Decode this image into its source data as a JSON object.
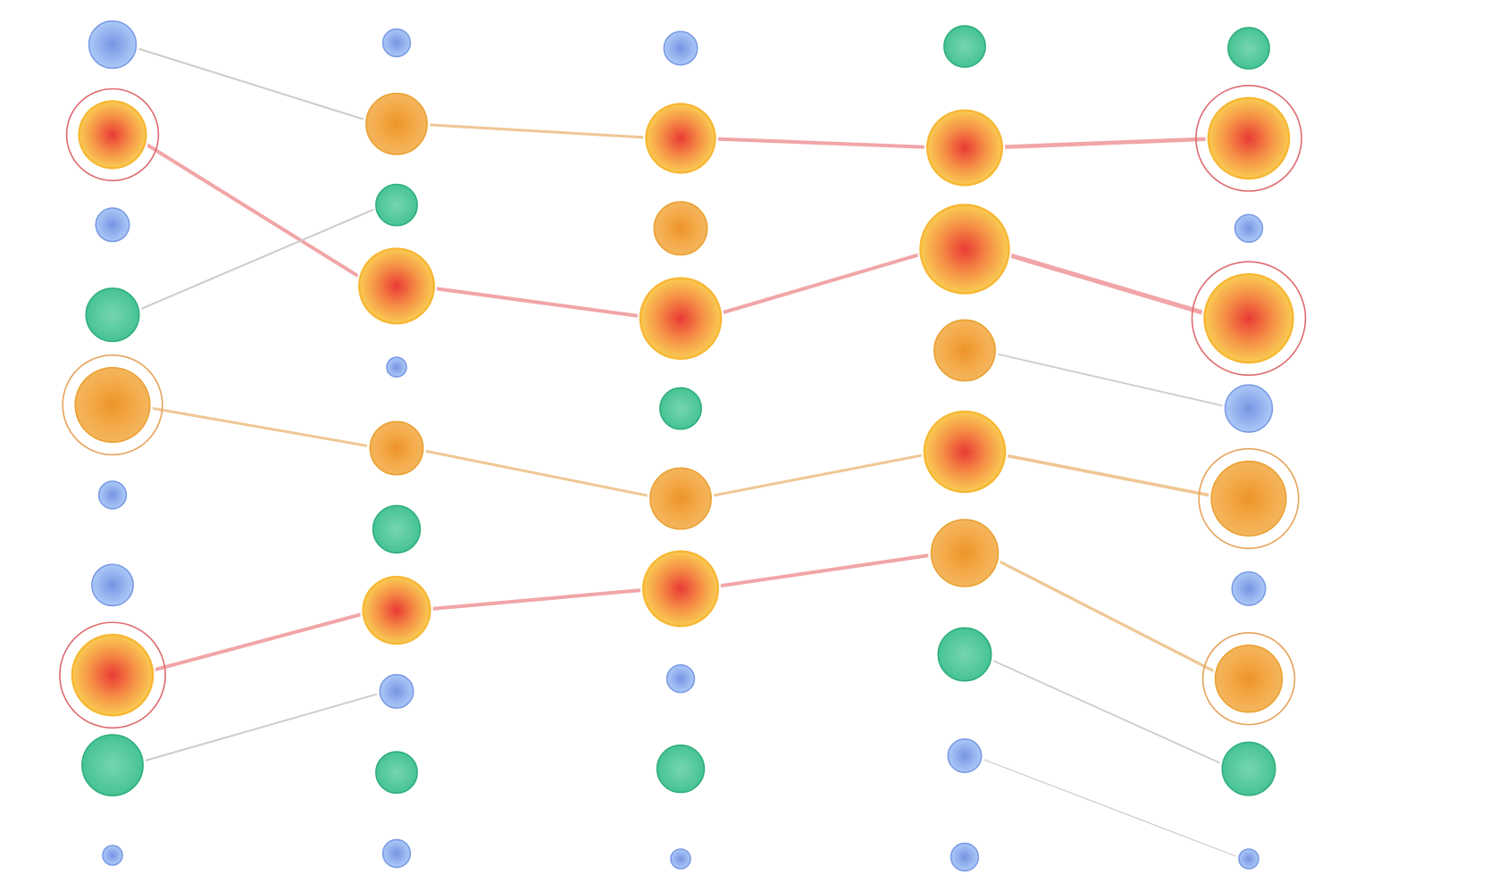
{
  "colors": {
    "background": "#ffffff",
    "hot": {
      "center": "#e8302a",
      "mid": "#f58a3c",
      "edge": "#f9c84a",
      "stroke": "#f7b733"
    },
    "warm": {
      "center": "#ec8e1d",
      "mid": "#f3a640",
      "edge": "#f3b154",
      "stroke": "#eaa131"
    },
    "green": {
      "center": "#6fd3ac",
      "edge": "#3cc08e",
      "stroke": "#2fae7e"
    },
    "blue": {
      "center": "#6f8fe0",
      "edge": "#a8c6f8",
      "stroke": "#7a9be4"
    },
    "link_hot": "#f0a0a2",
    "link_warm": "#eec48f",
    "link_gray": "#c6c6c8",
    "ring_hot": "#df6b70",
    "ring_warm": "#e6a35a",
    "halo": "#ffffff"
  },
  "columns": [
    {
      "id": "layer-1",
      "nodes": [
        {
          "id": "l1-n1",
          "kind": "blue",
          "size": 1.2
        },
        {
          "id": "l1-n2",
          "kind": "hot",
          "size": 1.7,
          "ring": "hot"
        },
        {
          "id": "l1-n3",
          "kind": "blue",
          "size": 0.85
        },
        {
          "id": "l1-n4",
          "kind": "green",
          "size": 1.35
        },
        {
          "id": "l1-n5",
          "kind": "warm",
          "size": 1.9,
          "ring": "warm"
        },
        {
          "id": "l1-n6",
          "kind": "blue",
          "size": 0.7
        },
        {
          "id": "l1-n7",
          "kind": "blue",
          "size": 1.05
        },
        {
          "id": "l1-n8",
          "kind": "hot",
          "size": 2.05,
          "ring": "hot"
        },
        {
          "id": "l1-n9",
          "kind": "green",
          "size": 1.55
        },
        {
          "id": "l1-n10",
          "kind": "blue",
          "size": 0.5
        }
      ]
    },
    {
      "id": "layer-2",
      "nodes": [
        {
          "id": "l2-n1",
          "kind": "blue",
          "size": 0.7
        },
        {
          "id": "l2-n2",
          "kind": "warm",
          "size": 1.55
        },
        {
          "id": "l2-n3",
          "kind": "green",
          "size": 1.05
        },
        {
          "id": "l2-n4",
          "kind": "hot",
          "size": 1.9
        },
        {
          "id": "l2-n5",
          "kind": "blue",
          "size": 0.5
        },
        {
          "id": "l2-n6",
          "kind": "warm",
          "size": 1.35
        },
        {
          "id": "l2-n7",
          "kind": "green",
          "size": 1.2
        },
        {
          "id": "l2-n8",
          "kind": "hot",
          "size": 1.7
        },
        {
          "id": "l2-n9",
          "kind": "blue",
          "size": 0.85
        },
        {
          "id": "l2-n10",
          "kind": "green",
          "size": 1.05
        },
        {
          "id": "l2-n11",
          "kind": "blue",
          "size": 0.7
        }
      ]
    },
    {
      "id": "layer-3",
      "nodes": [
        {
          "id": "l3-n1",
          "kind": "blue",
          "size": 0.85
        },
        {
          "id": "l3-n2",
          "kind": "hot",
          "size": 1.75
        },
        {
          "id": "l3-n3",
          "kind": "warm",
          "size": 1.35
        },
        {
          "id": "l3-n4",
          "kind": "hot",
          "size": 2.05
        },
        {
          "id": "l3-n5",
          "kind": "green",
          "size": 1.05
        },
        {
          "id": "l3-n6",
          "kind": "warm",
          "size": 1.55
        },
        {
          "id": "l3-n7",
          "kind": "hot",
          "size": 1.9
        },
        {
          "id": "l3-n8",
          "kind": "blue",
          "size": 0.7
        },
        {
          "id": "l3-n9",
          "kind": "green",
          "size": 1.2
        },
        {
          "id": "l3-n10",
          "kind": "blue",
          "size": 0.5
        }
      ]
    },
    {
      "id": "layer-4",
      "nodes": [
        {
          "id": "l4-n1",
          "kind": "green",
          "size": 1.05
        },
        {
          "id": "l4-n2",
          "kind": "hot",
          "size": 1.9
        },
        {
          "id": "l4-n3",
          "kind": "hot",
          "size": 2.25
        },
        {
          "id": "l4-n4",
          "kind": "warm",
          "size": 1.55
        },
        {
          "id": "l4-n5",
          "kind": "hot",
          "size": 2.05
        },
        {
          "id": "l4-n6",
          "kind": "warm",
          "size": 1.7
        },
        {
          "id": "l4-n7",
          "kind": "green",
          "size": 1.35
        },
        {
          "id": "l4-n8",
          "kind": "blue",
          "size": 0.85
        },
        {
          "id": "l4-n9",
          "kind": "blue",
          "size": 0.7
        }
      ]
    },
    {
      "id": "layer-5",
      "nodes": [
        {
          "id": "l5-n1",
          "kind": "green",
          "size": 1.05
        },
        {
          "id": "l5-n2",
          "kind": "hot",
          "size": 2.05,
          "ring": "hot"
        },
        {
          "id": "l5-n3",
          "kind": "blue",
          "size": 0.7
        },
        {
          "id": "l5-n4",
          "kind": "hot",
          "size": 2.25,
          "ring": "hot"
        },
        {
          "id": "l5-n5",
          "kind": "blue",
          "size": 1.2
        },
        {
          "id": "l5-n6",
          "kind": "warm",
          "size": 1.9,
          "ring": "warm"
        },
        {
          "id": "l5-n7",
          "kind": "blue",
          "size": 0.85
        },
        {
          "id": "l5-n8",
          "kind": "warm",
          "size": 1.7,
          "ring": "warm"
        },
        {
          "id": "l5-n9",
          "kind": "green",
          "size": 1.35
        },
        {
          "id": "l5-n10",
          "kind": "blue",
          "size": 0.5
        }
      ]
    }
  ],
  "edges": [
    {
      "from": "l1-n1",
      "to": "l2-n2",
      "kind": "gray",
      "weight": 1.0
    },
    {
      "from": "l1-n2",
      "to": "l2-n4",
      "kind": "hot",
      "weight": 2.0
    },
    {
      "from": "l1-n4",
      "to": "l2-n3",
      "kind": "gray",
      "weight": 1.0
    },
    {
      "from": "l1-n5",
      "to": "l2-n6",
      "kind": "warm",
      "weight": 1.5
    },
    {
      "from": "l1-n8",
      "to": "l2-n8",
      "kind": "hot",
      "weight": 2.0
    },
    {
      "from": "l1-n9",
      "to": "l2-n9",
      "kind": "gray",
      "weight": 1.0
    },
    {
      "from": "l2-n2",
      "to": "l3-n2",
      "kind": "warm",
      "weight": 1.5
    },
    {
      "from": "l2-n4",
      "to": "l3-n4",
      "kind": "hot",
      "weight": 2.0
    },
    {
      "from": "l2-n6",
      "to": "l3-n6",
      "kind": "warm",
      "weight": 1.5
    },
    {
      "from": "l2-n8",
      "to": "l3-n7",
      "kind": "hot",
      "weight": 2.0
    },
    {
      "from": "l3-n2",
      "to": "l4-n2",
      "kind": "hot",
      "weight": 2.0
    },
    {
      "from": "l3-n4",
      "to": "l4-n3",
      "kind": "hot",
      "weight": 2.0
    },
    {
      "from": "l3-n6",
      "to": "l4-n5",
      "kind": "warm",
      "weight": 1.5
    },
    {
      "from": "l3-n7",
      "to": "l4-n6",
      "kind": "hot",
      "weight": 2.0
    },
    {
      "from": "l4-n2",
      "to": "l5-n2",
      "kind": "hot",
      "weight": 2.3
    },
    {
      "from": "l4-n3",
      "to": "l5-n4",
      "kind": "hot",
      "weight": 2.6
    },
    {
      "from": "l4-n4",
      "to": "l5-n5",
      "kind": "gray",
      "weight": 0.9
    },
    {
      "from": "l4-n5",
      "to": "l5-n6",
      "kind": "warm",
      "weight": 1.8
    },
    {
      "from": "l4-n6",
      "to": "l5-n8",
      "kind": "warm",
      "weight": 1.6
    },
    {
      "from": "l4-n7",
      "to": "l5-n9",
      "kind": "gray",
      "weight": 0.9
    },
    {
      "from": "l4-n8",
      "to": "l5-n10",
      "kind": "gray",
      "weight": 0.6
    }
  ]
}
